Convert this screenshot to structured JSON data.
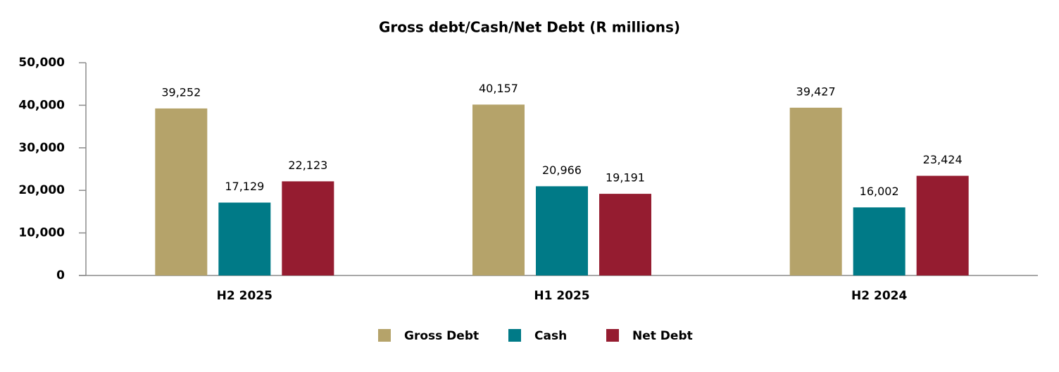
{
  "chart_data": {
    "type": "bar",
    "title": "Gross debt/Cash/Net Debt (R millions)",
    "categories": [
      "H2 2025",
      "H1 2025",
      "H2 2024"
    ],
    "series": [
      {
        "name": "Gross Debt",
        "color": "#b5a36a",
        "values": [
          39252,
          40157,
          39427
        ],
        "value_labels": [
          "39,252",
          "40,157",
          "39,427"
        ]
      },
      {
        "name": "Cash",
        "color": "#007a87",
        "values": [
          17129,
          20966,
          16002
        ],
        "value_labels": [
          "17,129",
          "20,966",
          "16,002"
        ]
      },
      {
        "name": "Net Debt",
        "color": "#951c30",
        "values": [
          22123,
          19191,
          23424
        ],
        "value_labels": [
          "22,123",
          "19,191",
          "23,424"
        ]
      }
    ],
    "ylim": [
      0,
      50000
    ],
    "yticks": [
      0,
      {
        "value": 10000,
        "label": "10,000"
      },
      {
        "value": 20000,
        "label": "20,000"
      },
      {
        "value": 30000,
        "label": "30,000"
      },
      {
        "value": 40000,
        "label": "40,000"
      },
      {
        "value": 50000,
        "label": "50,000"
      }
    ],
    "grid": false,
    "legend": "bottom"
  }
}
